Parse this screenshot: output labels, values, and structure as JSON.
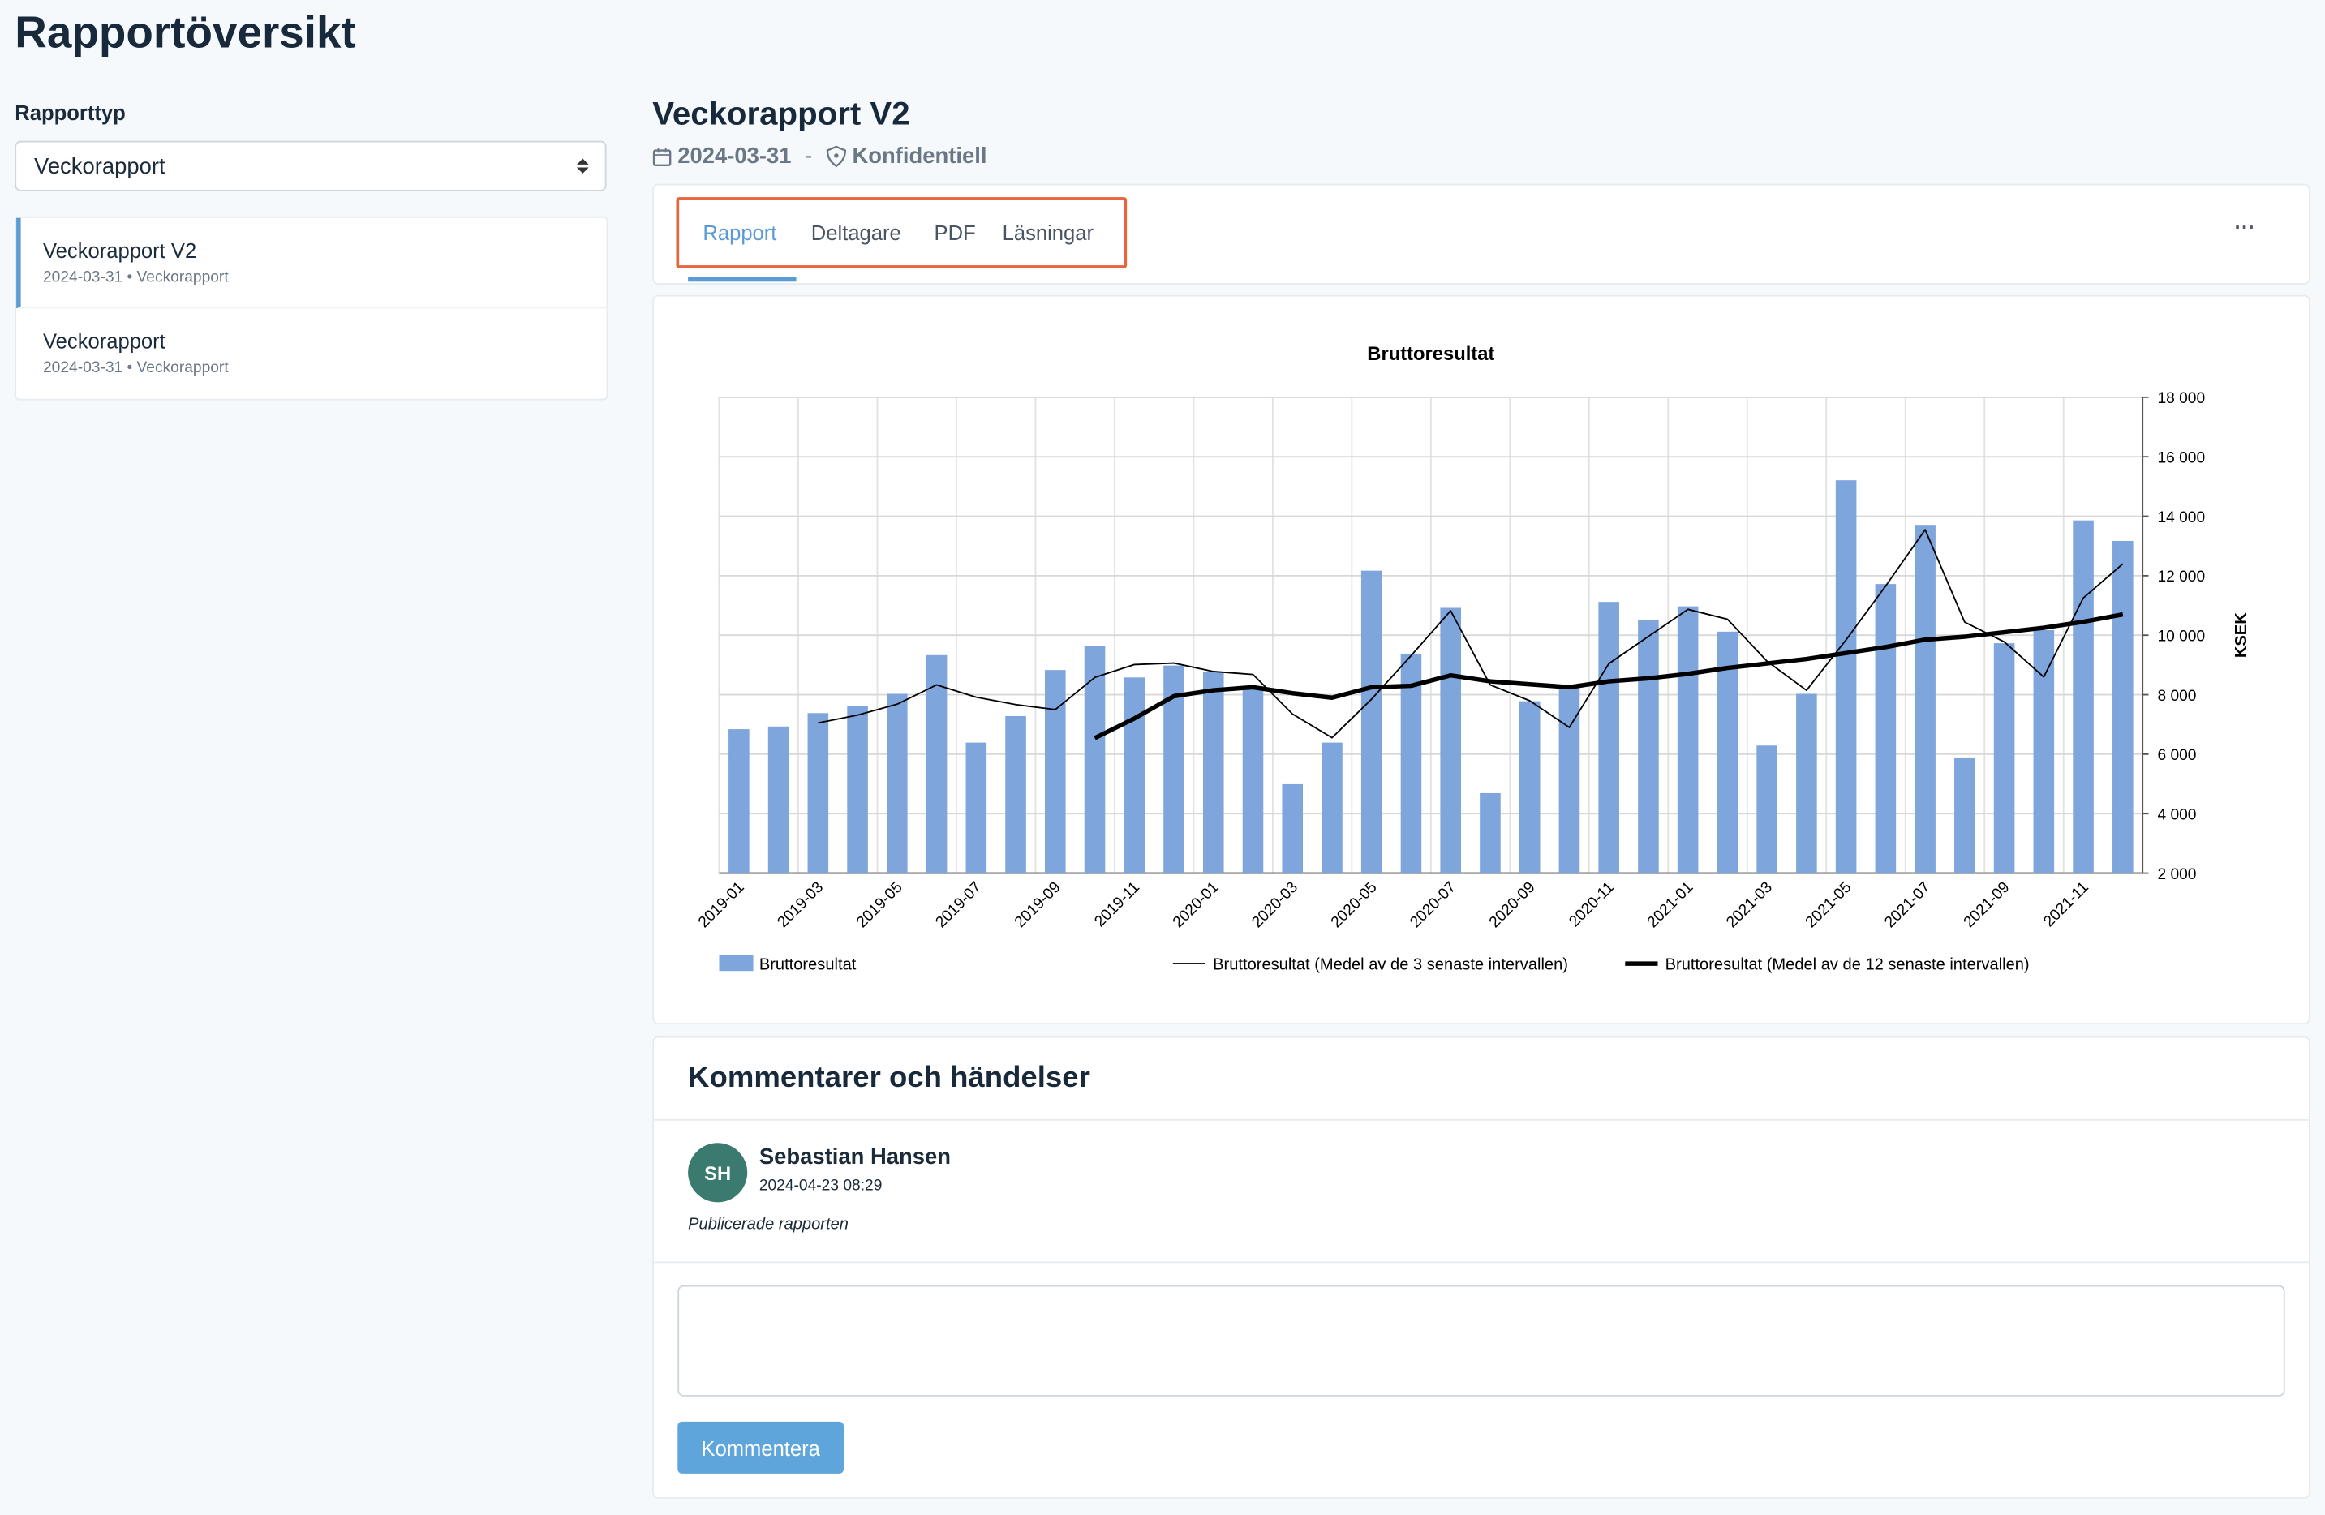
{
  "header": {
    "title": "Rapportöversikt"
  },
  "sidebar": {
    "filter_label": "Rapporttyp",
    "filter_value": "Veckorapport",
    "items": [
      {
        "title": "Veckorapport V2",
        "meta": "2024-03-31 • Veckorapport"
      },
      {
        "title": "Veckorapport",
        "meta": "2024-03-31 • Veckorapport"
      }
    ]
  },
  "report": {
    "title": "Veckorapport V2",
    "date": "2024-03-31",
    "separator": "-",
    "classification": "Konfidentiell",
    "tabs": [
      "Rapport",
      "Deltagare",
      "PDF",
      "Läsningar"
    ],
    "active_tab": 0,
    "menu": "···"
  },
  "chart_data": {
    "type": "bar",
    "title": "Bruttoresultat",
    "y_label": "KSEK",
    "categories": [
      "2019-01",
      null,
      "2019-03",
      null,
      "2019-05",
      null,
      "2019-07",
      null,
      "2019-09",
      null,
      "2019-11",
      null,
      "2020-01",
      null,
      "2020-03",
      null,
      "2020-05",
      null,
      "2020-07",
      null,
      "2020-09",
      null,
      "2020-11",
      null,
      "2021-01",
      null,
      "2021-03",
      null,
      "2021-05",
      null,
      "2021-07",
      null,
      "2021-09",
      null,
      "2021-11",
      null
    ],
    "series": [
      {
        "name": "Bruttoresultat",
        "type": "bar",
        "color": "#7fa6dc",
        "values": [
          6840,
          6930,
          7380,
          7630,
          8030,
          9330,
          6390,
          7280,
          8830,
          9630,
          8580,
          8980,
          8780,
          8280,
          4990,
          6390,
          12170,
          9380,
          10920,
          4690,
          7780,
          8230,
          11120,
          10520,
          10970,
          10120,
          6290,
          8030,
          15210,
          11720,
          13710,
          5890,
          9730,
          10170,
          13860,
          13170
        ]
      },
      {
        "name": "Bruttoresultat (Medel av de 3 senaste intervallen)",
        "type": "line",
        "color": "#000000",
        "width": 1,
        "values": [
          null,
          null,
          7050,
          7313,
          7680,
          8330,
          7917,
          7667,
          7500,
          8580,
          9013,
          9063,
          8780,
          8680,
          7350,
          6553,
          7850,
          9313,
          10823,
          8330,
          7797,
          6900,
          9043,
          9957,
          10870,
          10537,
          9127,
          8147,
          9843,
          11653,
          13547,
          10440,
          9777,
          8597,
          11253,
          12400
        ]
      },
      {
        "name": "Bruttoresultat (Medel av de 12 senaste intervallen)",
        "type": "line",
        "color": "#000000",
        "width": 3,
        "values": [
          null,
          null,
          null,
          null,
          null,
          null,
          null,
          null,
          null,
          6540,
          7200,
          7950,
          8150,
          8250,
          8050,
          7900,
          8250,
          8300,
          8650,
          8450,
          8350,
          8250,
          8450,
          8550,
          8700,
          8900,
          9050,
          9200,
          9400,
          9600,
          9850,
          9950,
          10100,
          10250,
          10450,
          10700
        ]
      }
    ],
    "ylim": [
      2000,
      18000
    ],
    "yticks": [
      {
        "value": 2000,
        "label": "2 000"
      },
      {
        "value": 4000,
        "label": "4 000"
      },
      {
        "value": 6000,
        "label": "6 000"
      },
      {
        "value": 8000,
        "label": "8 000"
      },
      {
        "value": 10000,
        "label": "10 000"
      },
      {
        "value": 12000,
        "label": "12 000"
      },
      {
        "value": 14000,
        "label": "14 000"
      },
      {
        "value": 16000,
        "label": "16 000"
      },
      {
        "value": 18000,
        "label": "18 000"
      }
    ],
    "grid": true,
    "y_axis_side": "right",
    "legend": "bottom"
  },
  "comments": {
    "title": "Kommentarer och händelser",
    "entries": [
      {
        "initials": "SH",
        "author": "Sebastian Hansen",
        "time": "2024-04-23 08:29",
        "text": "Publicerade rapporten"
      }
    ],
    "button": "Kommentera"
  }
}
